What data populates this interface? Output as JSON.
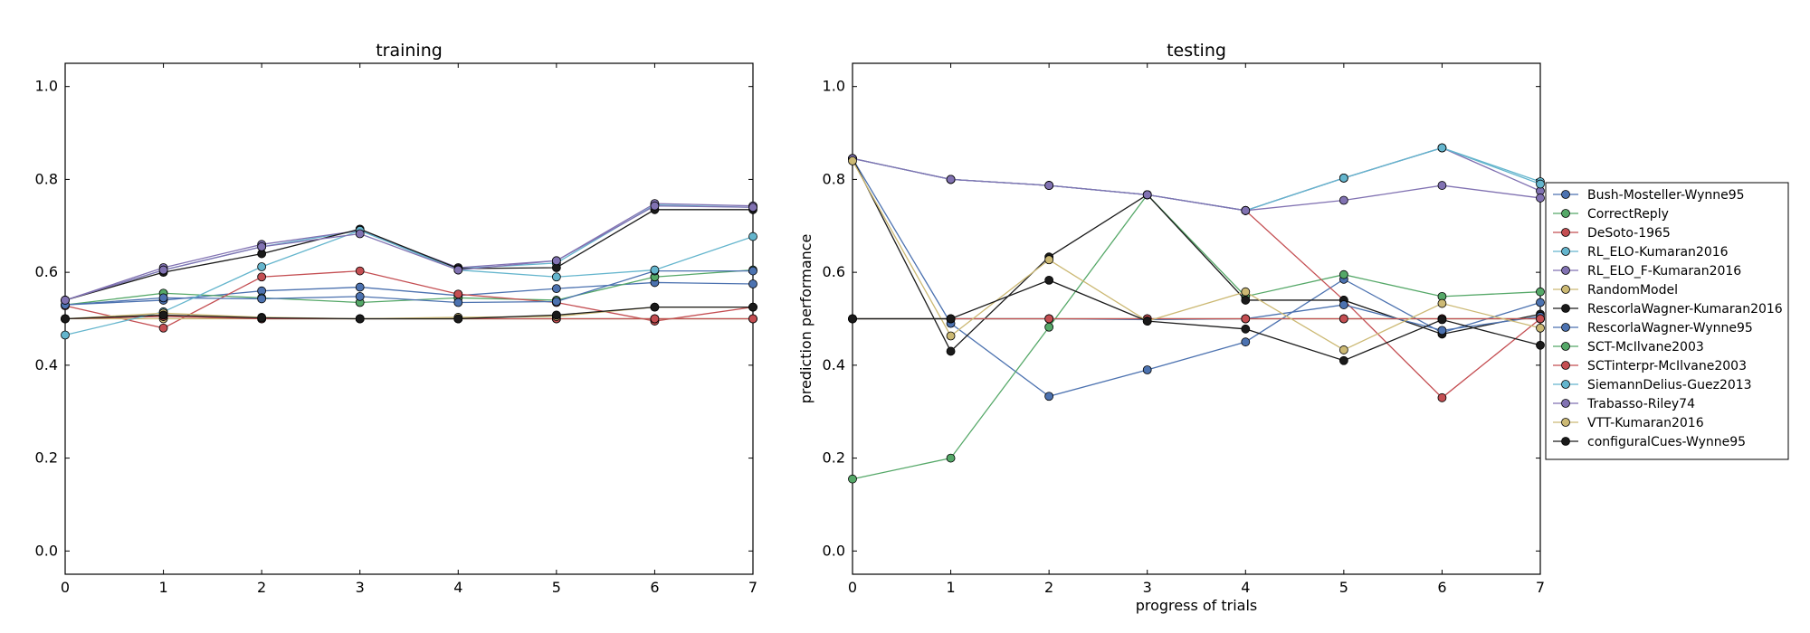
{
  "figure": {
    "xlabel": "progress of trials",
    "ylabel": "prediction performance"
  },
  "legend_title": "",
  "chart_data": [
    {
      "type": "line",
      "title": "training",
      "xlabel": "",
      "ylabel": "",
      "xlim": [
        0,
        7
      ],
      "ylim": [
        -0.05,
        1.05
      ],
      "x": [
        0,
        1,
        2,
        3,
        4,
        5,
        6,
        7
      ],
      "xticks": [
        "0",
        "1",
        "2",
        "3",
        "4",
        "5",
        "6",
        "7"
      ],
      "yticks": [
        "0.0",
        "0.2",
        "0.4",
        "0.6",
        "0.8",
        "1.0"
      ],
      "grid": false,
      "series": [
        {
          "name": "Bush-Mosteller-Wynne95",
          "color": "#4c72b0",
          "values": [
            0.53,
            0.54,
            0.56,
            0.568,
            0.55,
            0.565,
            0.578,
            0.575
          ]
        },
        {
          "name": "CorrectReply",
          "color": "#55a868",
          "values": [
            0.53,
            0.555,
            0.545,
            0.535,
            0.545,
            0.54,
            0.59,
            0.605
          ]
        },
        {
          "name": "DeSoto-1965",
          "color": "#c44e52",
          "values": [
            0.528,
            0.48,
            0.59,
            0.603,
            0.553,
            0.535,
            0.495,
            0.525
          ]
        },
        {
          "name": "RL_ELO-Kumaran2016",
          "color": "#64b5cd",
          "values": [
            0.54,
            0.605,
            0.655,
            0.69,
            0.608,
            0.62,
            0.745,
            0.74
          ]
        },
        {
          "name": "RL_ELO_F-Kumaran2016",
          "color": "#8172b2",
          "values": [
            0.54,
            0.61,
            0.66,
            0.69,
            0.61,
            0.625,
            0.748,
            0.743
          ]
        },
        {
          "name": "RandomModel",
          "color": "#ccb974",
          "values": [
            0.5,
            0.5,
            0.5,
            0.5,
            0.5,
            0.5,
            0.5,
            0.5
          ]
        },
        {
          "name": "RescorlaWagner-Kumaran2016",
          "color": "#1a1a1a",
          "values": [
            0.54,
            0.6,
            0.64,
            0.693,
            0.608,
            0.61,
            0.735,
            0.735
          ]
        },
        {
          "name": "RescorlaWagner-Wynne95",
          "color": "#4c72b0",
          "values": [
            0.53,
            0.545,
            0.543,
            0.548,
            0.535,
            0.537,
            0.603,
            0.603
          ]
        },
        {
          "name": "SCT-McIlvane2003",
          "color": "#55a868",
          "values": [
            0.5,
            0.505,
            0.5,
            0.5,
            0.5,
            0.5,
            0.5,
            0.5
          ]
        },
        {
          "name": "SCTinterpr-McIlvane2003",
          "color": "#c44e52",
          "values": [
            0.5,
            0.505,
            0.5,
            0.5,
            0.5,
            0.5,
            0.5,
            0.5
          ]
        },
        {
          "name": "SiemannDelius-Guez2013",
          "color": "#64b5cd",
          "values": [
            0.465,
            0.515,
            0.612,
            0.69,
            0.605,
            0.59,
            0.605,
            0.677
          ]
        },
        {
          "name": "Trabasso-Riley74",
          "color": "#8172b2",
          "values": [
            0.54,
            0.605,
            0.655,
            0.683,
            0.605,
            0.625,
            0.743,
            0.74
          ]
        },
        {
          "name": "VTT-Kumaran2016",
          "color": "#ccb974",
          "values": [
            0.5,
            0.512,
            0.503,
            0.5,
            0.503,
            0.505,
            0.525,
            0.525
          ]
        },
        {
          "name": "configuralCues-Wynne95",
          "color": "#1a1a1a",
          "values": [
            0.5,
            0.508,
            0.502,
            0.5,
            0.5,
            0.508,
            0.525,
            0.525
          ]
        }
      ]
    },
    {
      "type": "line",
      "title": "testing",
      "xlabel": "progress of trials",
      "ylabel": "prediction performance",
      "xlim": [
        0,
        7
      ],
      "ylim": [
        -0.05,
        1.05
      ],
      "x": [
        0,
        1,
        2,
        3,
        4,
        5,
        6,
        7
      ],
      "xticks": [
        "0",
        "1",
        "2",
        "3",
        "4",
        "5",
        "6",
        "7"
      ],
      "yticks": [
        "0.0",
        "0.2",
        "0.4",
        "0.6",
        "0.8",
        "1.0"
      ],
      "grid": false,
      "legend": "right, outside axes",
      "series": [
        {
          "name": "Bush-Mosteller-Wynne95",
          "color": "#4c72b0",
          "values": [
            0.845,
            0.49,
            0.333,
            0.39,
            0.45,
            0.585,
            0.47,
            0.535
          ]
        },
        {
          "name": "CorrectReply",
          "color": "#55a868",
          "values": [
            0.155,
            0.2,
            0.482,
            0.767,
            0.548,
            0.595,
            0.548,
            0.558
          ]
        },
        {
          "name": "DeSoto-1965",
          "color": "#c44e52",
          "values": [
            0.845,
            0.8,
            0.787,
            0.767,
            0.733,
            0.54,
            0.33,
            0.5
          ]
        },
        {
          "name": "RL_ELO-Kumaran2016",
          "color": "#64b5cd",
          "values": [
            0.845,
            0.8,
            0.787,
            0.767,
            0.733,
            0.803,
            0.868,
            0.795
          ]
        },
        {
          "name": "RL_ELO_F-Kumaran2016",
          "color": "#8172b2",
          "values": [
            0.845,
            0.8,
            0.787,
            0.767,
            0.733,
            0.803,
            0.868,
            0.775
          ]
        },
        {
          "name": "RandomModel",
          "color": "#ccb974",
          "values": [
            0.5,
            0.5,
            0.5,
            0.5,
            0.5,
            0.5,
            0.5,
            0.5
          ]
        },
        {
          "name": "RescorlaWagner-Kumaran2016",
          "color": "#1a1a1a",
          "values": [
            0.845,
            0.43,
            0.633,
            0.767,
            0.54,
            0.54,
            0.467,
            0.51
          ]
        },
        {
          "name": "RescorlaWagner-Wynne95",
          "color": "#4c72b0",
          "values": [
            0.5,
            0.5,
            0.5,
            0.498,
            0.5,
            0.53,
            0.475,
            0.505
          ]
        },
        {
          "name": "SCT-McIlvane2003",
          "color": "#55a868",
          "values": [
            0.5,
            0.5,
            0.5,
            0.5,
            0.5,
            0.5,
            0.5,
            0.5
          ]
        },
        {
          "name": "SCTinterpr-McIlvane2003",
          "color": "#c44e52",
          "values": [
            0.5,
            0.5,
            0.5,
            0.5,
            0.5,
            0.5,
            0.5,
            0.5
          ]
        },
        {
          "name": "SiemannDelius-Guez2013",
          "color": "#64b5cd",
          "values": [
            0.845,
            0.8,
            0.787,
            0.767,
            0.733,
            0.803,
            0.868,
            0.79
          ]
        },
        {
          "name": "Trabasso-Riley74",
          "color": "#8172b2",
          "values": [
            0.845,
            0.8,
            0.787,
            0.767,
            0.733,
            0.755,
            0.787,
            0.76
          ]
        },
        {
          "name": "VTT-Kumaran2016",
          "color": "#ccb974",
          "values": [
            0.84,
            0.463,
            0.627,
            0.495,
            0.558,
            0.433,
            0.533,
            0.48
          ]
        },
        {
          "name": "configuralCues-Wynne95",
          "color": "#1a1a1a",
          "values": [
            0.5,
            0.5,
            0.583,
            0.495,
            0.478,
            0.41,
            0.498,
            0.443
          ]
        }
      ]
    }
  ]
}
